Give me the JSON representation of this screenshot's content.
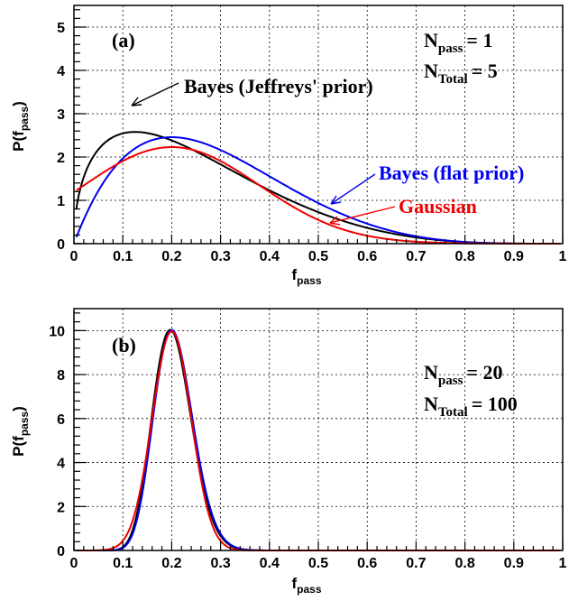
{
  "chart_data": [
    {
      "type": "line",
      "panel_label": "(a)",
      "xlabel": "f",
      "xlabel_sub": "pass",
      "ylabel": "P(f",
      "ylabel_sub": "pass",
      "ylabel_close": ")",
      "xlim": [
        0,
        1
      ],
      "ylim": [
        0,
        5.5
      ],
      "x_ticks": [
        0,
        0.1,
        0.2,
        0.3,
        0.4,
        0.5,
        0.6,
        0.7,
        0.8,
        0.9,
        1
      ],
      "x_tick_labels": [
        "0",
        "0.1",
        "0.2",
        "0.3",
        "0.4",
        "0.5",
        "0.6",
        "0.7",
        "0.8",
        "0.9",
        "1"
      ],
      "y_ticks": [
        0,
        1,
        2,
        3,
        4,
        5
      ],
      "y_tick_labels": [
        "0",
        "1",
        "2",
        "3",
        "4",
        "5"
      ],
      "grid": true,
      "n_pass": {
        "label": "N",
        "sub": "pass",
        "value": "= 1"
      },
      "n_total": {
        "label": "N",
        "sub": "Total",
        "value": "= 5"
      },
      "series": [
        {
          "name": "Bayes (Jeffreys' prior)",
          "color": "#000000",
          "model": "beta",
          "a": 1.5,
          "b": 4.5
        },
        {
          "name": "Bayes (flat prior)",
          "color": "#0000ee",
          "model": "beta",
          "a": 2,
          "b": 5
        },
        {
          "name": "Gaussian",
          "color": "#ee0000",
          "model": "gaussian",
          "mean": 0.2,
          "sigma": 0.179
        }
      ]
    },
    {
      "type": "line",
      "panel_label": "(b)",
      "xlabel": "f",
      "xlabel_sub": "pass",
      "ylabel": "P(f",
      "ylabel_sub": "pass",
      "ylabel_close": ")",
      "xlim": [
        0,
        1
      ],
      "ylim": [
        0,
        11
      ],
      "x_ticks": [
        0,
        0.1,
        0.2,
        0.3,
        0.4,
        0.5,
        0.6,
        0.7,
        0.8,
        0.9,
        1
      ],
      "x_tick_labels": [
        "0",
        "0.1",
        "0.2",
        "0.3",
        "0.4",
        "0.5",
        "0.6",
        "0.7",
        "0.8",
        "0.9",
        "1"
      ],
      "y_ticks": [
        0,
        2,
        4,
        6,
        8,
        10
      ],
      "y_tick_labels": [
        "0",
        "2",
        "4",
        "6",
        "8",
        "10"
      ],
      "grid": true,
      "n_pass": {
        "label": "N",
        "sub": "pass",
        "value": "= 20"
      },
      "n_total": {
        "label": "N",
        "sub": "Total",
        "value": "= 100"
      },
      "series": [
        {
          "name": "",
          "color": "#000000",
          "model": "beta",
          "a": 20.5,
          "b": 80.5
        },
        {
          "name": "",
          "color": "#0000ee",
          "model": "beta",
          "a": 21,
          "b": 81
        },
        {
          "name": "",
          "color": "#ee0000",
          "model": "gaussian",
          "mean": 0.2,
          "sigma": 0.04
        }
      ]
    }
  ]
}
